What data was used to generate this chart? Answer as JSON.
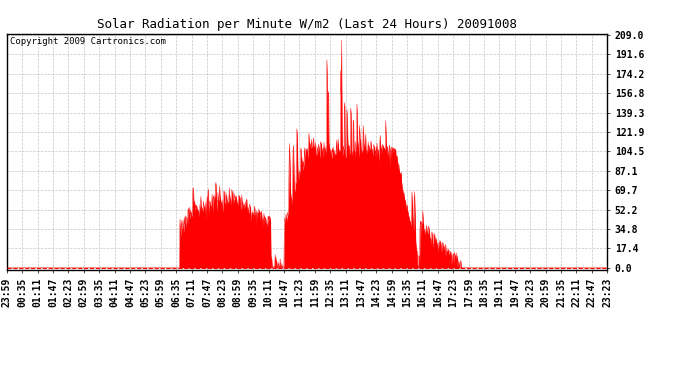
{
  "title": "Solar Radiation per Minute W/m2 (Last 24 Hours) 20091008",
  "copyright": "Copyright 2009 Cartronics.com",
  "y_ticks": [
    0.0,
    17.4,
    34.8,
    52.2,
    69.7,
    87.1,
    104.5,
    121.9,
    139.3,
    156.8,
    174.2,
    191.6,
    209.0
  ],
  "y_max": 209.0,
  "fill_color": "#ff0000",
  "bg_color": "#ffffff",
  "plot_bg_color": "#ffffff",
  "grid_color": "#c0c0c0",
  "border_color": "#000000",
  "dashed_line_color": "#ff0000",
  "n_points": 1440,
  "x_label_start_hour": 23,
  "x_label_start_min": 59,
  "n_xticks": 40,
  "title_fontsize": 9,
  "tick_fontsize": 7,
  "copyright_fontsize": 6.5
}
